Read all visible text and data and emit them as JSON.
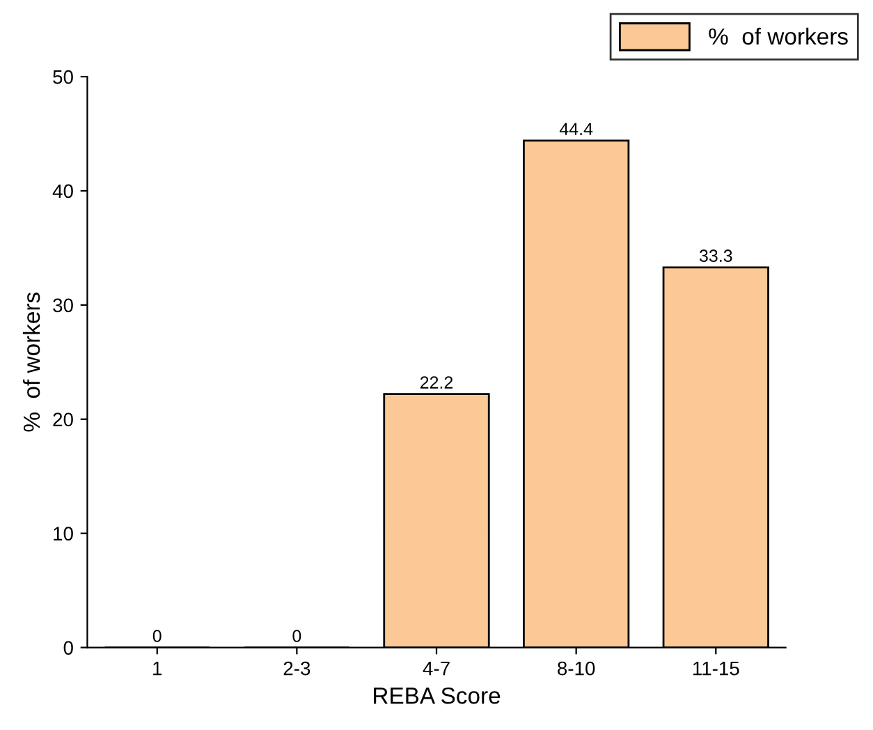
{
  "chart_data": {
    "type": "bar",
    "xlabel": "REBA Score",
    "ylabel": "%  of workers",
    "categories": [
      "1",
      "2-3",
      "4-7",
      "8-10",
      "11-15"
    ],
    "series": [
      {
        "name": "%  of workers",
        "color": "#fbc896",
        "values": [
          0,
          0,
          22.2,
          44.4,
          33.3
        ]
      }
    ],
    "ylim": [
      0,
      50
    ],
    "yticks": [
      0,
      10,
      20,
      30,
      40,
      50
    ],
    "data_labels": true,
    "legend": "top right",
    "grid": false
  }
}
